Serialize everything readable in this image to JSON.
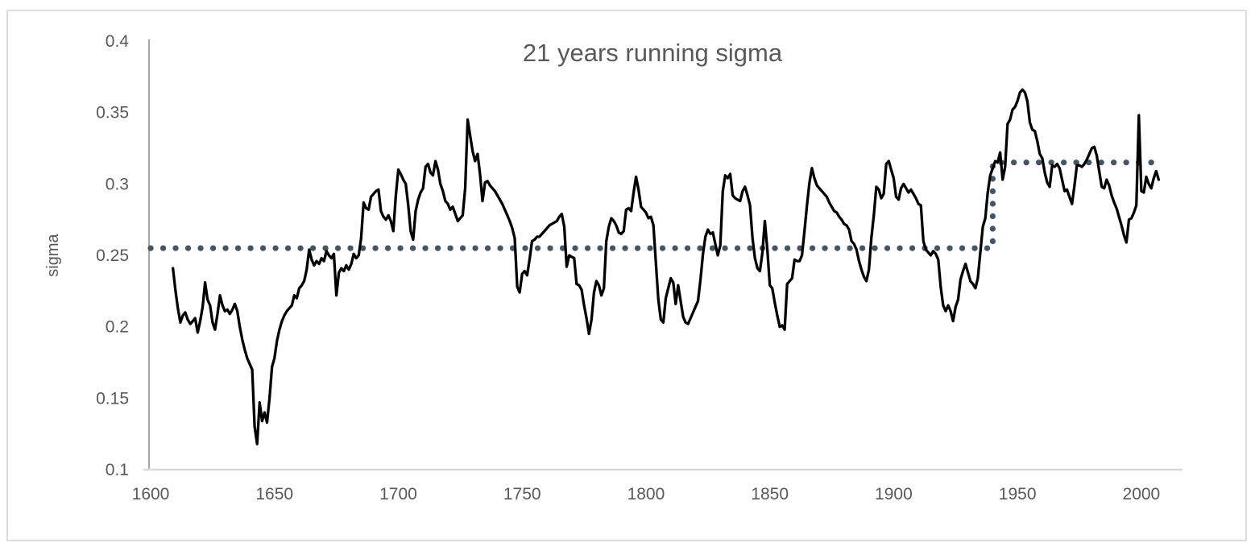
{
  "chart_data": {
    "type": "line",
    "title": "21 years running sigma",
    "xlabel": "",
    "ylabel": "sigma",
    "xlim": [
      1600,
      2017
    ],
    "ylim": [
      0.1,
      0.4
    ],
    "grid": false,
    "legend": null,
    "x_ticks": [
      "1600",
      "1650",
      "1700",
      "1750",
      "1800",
      "1850",
      "1900",
      "1950",
      "2000"
    ],
    "y_ticks": [
      "0.4",
      "0.35",
      "0.3",
      "0.25",
      "0.2",
      "0.15",
      "0.1"
    ],
    "y_tick_values": [
      0.4,
      0.35,
      0.3,
      0.25,
      0.2,
      0.15,
      0.1
    ],
    "x_tick_values": [
      1600,
      1650,
      1700,
      1750,
      1800,
      1850,
      1900,
      1950,
      2000
    ],
    "colors": {
      "series_line": "#000000",
      "mean_step_line": "#44546A",
      "text": "#595959",
      "y_axis_line": "#A6A6A6",
      "x_axis_line": "#D9D9D9",
      "frame_border": "#DCDCDC"
    },
    "series": [
      {
        "name": "21 years running sigma",
        "type": "line",
        "color": "#000000",
        "start_year": 1609,
        "step": 1,
        "values": [
          0.241,
          0.226,
          0.213,
          0.203,
          0.208,
          0.21,
          0.205,
          0.202,
          0.204,
          0.206,
          0.196,
          0.204,
          0.214,
          0.231,
          0.219,
          0.215,
          0.203,
          0.198,
          0.209,
          0.222,
          0.215,
          0.211,
          0.212,
          0.209,
          0.212,
          0.216,
          0.211,
          0.2,
          0.191,
          0.184,
          0.178,
          0.174,
          0.17,
          0.13,
          0.118,
          0.147,
          0.134,
          0.14,
          0.133,
          0.15,
          0.172,
          0.178,
          0.19,
          0.198,
          0.204,
          0.208,
          0.211,
          0.213,
          0.215,
          0.222,
          0.22,
          0.227,
          0.229,
          0.232,
          0.24,
          0.254,
          0.247,
          0.243,
          0.246,
          0.244,
          0.248,
          0.246,
          0.253,
          0.25,
          0.248,
          0.251,
          0.222,
          0.238,
          0.241,
          0.239,
          0.243,
          0.24,
          0.244,
          0.251,
          0.248,
          0.25,
          0.262,
          0.287,
          0.283,
          0.282,
          0.291,
          0.293,
          0.295,
          0.296,
          0.281,
          0.277,
          0.275,
          0.278,
          0.274,
          0.267,
          0.292,
          0.31,
          0.307,
          0.303,
          0.3,
          0.285,
          0.267,
          0.261,
          0.281,
          0.289,
          0.294,
          0.297,
          0.312,
          0.314,
          0.308,
          0.306,
          0.316,
          0.31,
          0.3,
          0.295,
          0.288,
          0.286,
          0.282,
          0.284,
          0.279,
          0.274,
          0.276,
          0.278,
          0.297,
          0.345,
          0.334,
          0.323,
          0.316,
          0.321,
          0.307,
          0.288,
          0.301,
          0.302,
          0.299,
          0.297,
          0.295,
          0.292,
          0.289,
          0.286,
          0.282,
          0.278,
          0.274,
          0.269,
          0.262,
          0.228,
          0.224,
          0.237,
          0.239,
          0.236,
          0.247,
          0.26,
          0.261,
          0.263,
          0.263,
          0.265,
          0.267,
          0.269,
          0.271,
          0.272,
          0.273,
          0.274,
          0.277,
          0.279,
          0.27,
          0.242,
          0.25,
          0.249,
          0.248,
          0.23,
          0.229,
          0.226,
          0.215,
          0.206,
          0.195,
          0.205,
          0.224,
          0.232,
          0.229,
          0.222,
          0.227,
          0.26,
          0.27,
          0.276,
          0.274,
          0.271,
          0.266,
          0.265,
          0.267,
          0.282,
          0.283,
          0.281,
          0.294,
          0.305,
          0.296,
          0.284,
          0.282,
          0.28,
          0.276,
          0.277,
          0.271,
          0.245,
          0.219,
          0.205,
          0.203,
          0.22,
          0.227,
          0.234,
          0.231,
          0.216,
          0.229,
          0.218,
          0.207,
          0.203,
          0.202,
          0.206,
          0.21,
          0.214,
          0.218,
          0.233,
          0.251,
          0.263,
          0.268,
          0.265,
          0.266,
          0.258,
          0.25,
          0.257,
          0.295,
          0.306,
          0.304,
          0.307,
          0.292,
          0.29,
          0.289,
          0.288,
          0.295,
          0.298,
          0.292,
          0.285,
          0.262,
          0.248,
          0.241,
          0.239,
          0.252,
          0.274,
          0.254,
          0.229,
          0.227,
          0.217,
          0.208,
          0.2,
          0.201,
          0.198,
          0.23,
          0.232,
          0.234,
          0.247,
          0.246,
          0.246,
          0.25,
          0.267,
          0.285,
          0.301,
          0.311,
          0.304,
          0.299,
          0.297,
          0.295,
          0.293,
          0.291,
          0.287,
          0.284,
          0.281,
          0.28,
          0.277,
          0.275,
          0.272,
          0.271,
          0.268,
          0.26,
          0.258,
          0.254,
          0.246,
          0.24,
          0.235,
          0.232,
          0.24,
          0.262,
          0.278,
          0.298,
          0.296,
          0.29,
          0.293,
          0.314,
          0.316,
          0.31,
          0.304,
          0.291,
          0.289,
          0.297,
          0.3,
          0.297,
          0.294,
          0.296,
          0.293,
          0.29,
          0.286,
          0.285,
          0.26,
          0.254,
          0.252,
          0.25,
          0.253,
          0.251,
          0.247,
          0.228,
          0.215,
          0.211,
          0.215,
          0.211,
          0.204,
          0.214,
          0.219,
          0.233,
          0.239,
          0.244,
          0.238,
          0.232,
          0.23,
          0.227,
          0.234,
          0.252,
          0.27,
          0.276,
          0.294,
          0.306,
          0.311,
          0.316,
          0.315,
          0.322,
          0.303,
          0.312,
          0.342,
          0.345,
          0.352,
          0.354,
          0.358,
          0.364,
          0.366,
          0.364,
          0.358,
          0.343,
          0.338,
          0.337,
          0.33,
          0.321,
          0.318,
          0.308,
          0.301,
          0.298,
          0.313,
          0.312,
          0.314,
          0.311,
          0.303,
          0.295,
          0.296,
          0.291,
          0.286,
          0.299,
          0.313,
          0.313,
          0.312,
          0.314,
          0.317,
          0.321,
          0.325,
          0.326,
          0.32,
          0.309,
          0.298,
          0.297,
          0.303,
          0.299,
          0.292,
          0.287,
          0.283,
          0.277,
          0.271,
          0.264,
          0.259,
          0.275,
          0.276,
          0.28,
          0.285,
          0.348,
          0.295,
          0.294,
          0.305,
          0.3,
          0.297,
          0.304,
          0.309,
          0.303
        ]
      },
      {
        "name": "mean level (dotted step)",
        "type": "dotted-step",
        "color": "#44546A",
        "points": [
          [
            1600,
            0.255
          ],
          [
            1940,
            0.255
          ],
          [
            1940,
            0.315
          ],
          [
            2008,
            0.315
          ]
        ]
      }
    ],
    "mean_lines": [
      {
        "from_year": 1600,
        "to_year": 1940,
        "value": 0.255
      },
      {
        "from_year": 1940,
        "to_year": 2008,
        "value": 0.315
      }
    ]
  }
}
